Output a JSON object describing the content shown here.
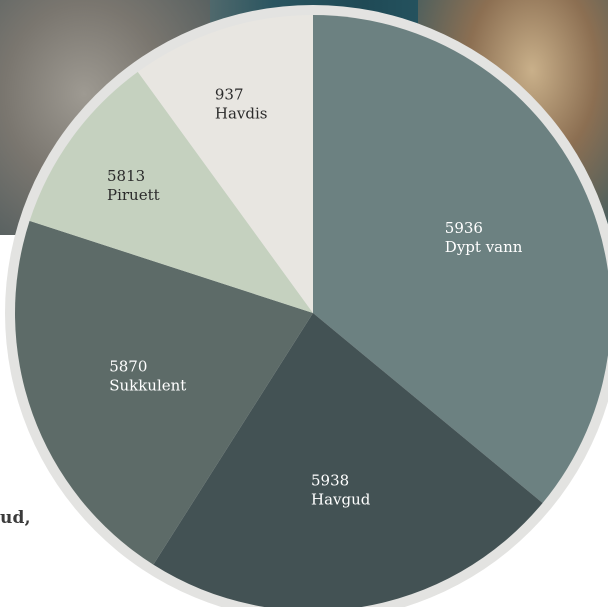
{
  "side_text": "ud,",
  "chart_data": {
    "type": "pie",
    "title": "",
    "start_angle_deg": 0,
    "direction": "clockwise",
    "slices": [
      {
        "code": "5936",
        "name": "Dypt vann",
        "value": 36,
        "color": "#6c8181",
        "label_color": "#ffffff"
      },
      {
        "code": "5938",
        "name": "Havgud",
        "value": 23,
        "color": "#435254",
        "label_color": "#ffffff"
      },
      {
        "code": "5870",
        "name": "Sukkulent",
        "value": 21,
        "color": "#5d6b68",
        "label_color": "#ffffff"
      },
      {
        "code": "5813",
        "name": "Piruett",
        "value": 10,
        "color": "#c5d1bf",
        "label_color": "#2b2b2b"
      },
      {
        "code": "937",
        "name": "Havdis",
        "value": 10,
        "color": "#e8e6e1",
        "label_color": "#2b2b2b"
      }
    ],
    "rim_color": "#e3e3e1"
  }
}
